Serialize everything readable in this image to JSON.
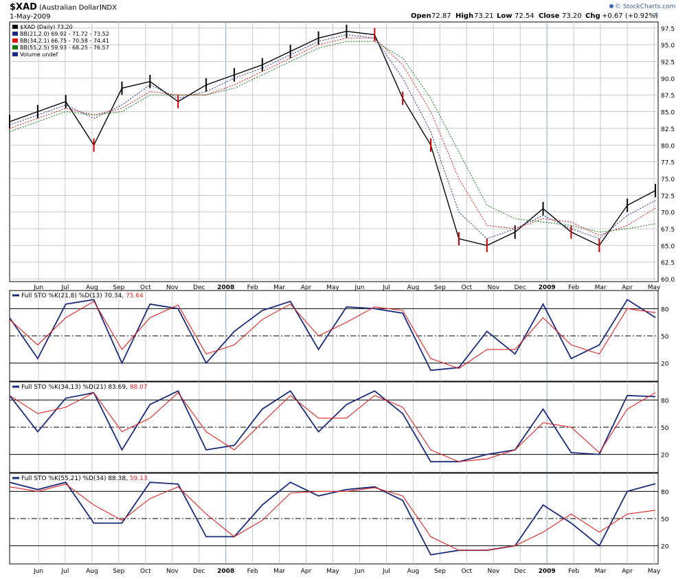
{
  "header": {
    "symbol": "$XAD",
    "name": "(Australian Dollar)",
    "exchange": "INDX",
    "date": "1-May-2009",
    "open_label": "Open",
    "open": "72.87",
    "high_label": "High",
    "high": "73.21",
    "low_label": "Low",
    "low": "72.54",
    "close_label": "Close",
    "close": "73.20",
    "chg_label": "Chg",
    "chg": "+0.67 (+0.92%)",
    "brand": "© StockCharts.com"
  },
  "colors": {
    "price_up": "#000000",
    "price_down": "#cc0000",
    "bb21": "#1a2a8c",
    "bb34": "#dd1111",
    "bb55": "#117711",
    "stoch_k": "#1a2a7a",
    "stoch_d": "#dd2222",
    "grid": "#c8c8c8"
  },
  "chart_data": [
    {
      "type": "line",
      "panel": "price",
      "legend": [
        {
          "text": "$XAD (Daily) 73.20",
          "color": "#000000"
        },
        {
          "text": "BB(21,2.0) 69.92 - 71.72 - 73.52",
          "color": "#1a2a8c"
        },
        {
          "text": "BB(34,2.1) 66.75 - 70.58 - 74.41",
          "color": "#dd1111"
        },
        {
          "text": "BB(55,2.5) 59.93 - 68.25 - 76.57",
          "color": "#117711"
        },
        {
          "text": "Volume undef",
          "color": "#1a2a8c"
        }
      ],
      "ylim": [
        59.6,
        98.4
      ],
      "yticks": [
        "60.0",
        "62.5",
        "65.0",
        "67.5",
        "70.0",
        "72.5",
        "75.0",
        "77.5",
        "80.0",
        "82.5",
        "85.0",
        "87.5",
        "90.0",
        "92.5",
        "95.0",
        "97.5"
      ],
      "x_labels": [
        "Jun",
        "Jul",
        "Aug",
        "Sep",
        "Oct",
        "Nov",
        "Dec",
        "2008",
        "Feb",
        "Mar",
        "Apr",
        "May",
        "Jun",
        "Jul",
        "Aug",
        "Sep",
        "Oct",
        "Nov",
        "Dec",
        "2009",
        "Feb",
        "Mar",
        "Apr",
        "May"
      ],
      "x": [
        0,
        1,
        2,
        3,
        4,
        5,
        6,
        7,
        8,
        9,
        10,
        11,
        12,
        13,
        14,
        15,
        16,
        17,
        18,
        19,
        20,
        21,
        22,
        23
      ],
      "series": [
        {
          "name": "$XAD (Daily) 73.20",
          "values": [
            83.5,
            85.0,
            86.5,
            80.0,
            88.5,
            89.5,
            86.5,
            89.0,
            90.5,
            92.0,
            94.0,
            96.0,
            97.0,
            96.5,
            87.0,
            80.0,
            66.0,
            65.0,
            67.0,
            70.5,
            67.0,
            65.0,
            71.0,
            73.2
          ]
        },
        {
          "name": "BB(21,2.0) 69.92 - 71.72 - 73.52",
          "values": [
            83.0,
            84.5,
            86.0,
            84.0,
            86.0,
            89.0,
            87.0,
            88.0,
            90.0,
            91.5,
            93.5,
            95.5,
            96.5,
            96.0,
            90.0,
            82.0,
            70.0,
            66.0,
            67.5,
            69.5,
            67.5,
            66.0,
            69.5,
            71.72
          ]
        },
        {
          "name": "BB(34,2.1) 66.75 - 70.58 - 74.41",
          "values": [
            82.5,
            84.0,
            85.5,
            84.5,
            85.5,
            88.0,
            87.5,
            87.5,
            89.0,
            91.0,
            93.0,
            95.0,
            96.0,
            96.0,
            92.0,
            85.0,
            75.0,
            68.0,
            67.5,
            69.0,
            68.5,
            66.5,
            68.0,
            70.58
          ]
        },
        {
          "name": "BB(55,2.5) 59.93 - 68.25 - 76.57",
          "values": [
            82.0,
            83.5,
            85.0,
            84.5,
            85.0,
            87.5,
            87.5,
            87.5,
            88.5,
            90.5,
            92.5,
            94.5,
            95.5,
            95.5,
            93.0,
            87.0,
            79.0,
            71.0,
            69.0,
            68.5,
            68.0,
            67.0,
            67.5,
            68.25
          ]
        }
      ]
    },
    {
      "type": "line",
      "panel": "sto1",
      "title": "Full STO %K(21,8) %D(13)",
      "k_value": "70.34",
      "d_value": "75.64",
      "ylim": [
        0,
        100
      ],
      "yticks": [
        "20",
        "50",
        "80"
      ],
      "x": [
        0,
        1,
        2,
        3,
        4,
        5,
        6,
        7,
        8,
        9,
        10,
        11,
        12,
        13,
        14,
        15,
        16,
        17,
        18,
        19,
        20,
        21,
        22,
        23
      ],
      "series": [
        {
          "name": "%K(21,8)",
          "values": [
            70,
            25,
            85,
            90,
            20,
            85,
            80,
            20,
            55,
            78,
            88,
            35,
            82,
            80,
            75,
            12,
            15,
            55,
            30,
            85,
            25,
            40,
            90,
            70.34
          ]
        },
        {
          "name": "%D(13)",
          "values": [
            68,
            40,
            70,
            88,
            35,
            70,
            84,
            30,
            40,
            68,
            85,
            50,
            65,
            82,
            78,
            25,
            14,
            35,
            35,
            70,
            40,
            30,
            80,
            75.64
          ]
        }
      ]
    },
    {
      "type": "line",
      "panel": "sto2",
      "title": "Full STO %K(34,13) %D(21)",
      "k_value": "83.69",
      "d_value": "88.07",
      "ylim": [
        0,
        100
      ],
      "yticks": [
        "20",
        "50",
        "80"
      ],
      "x": [
        0,
        1,
        2,
        3,
        4,
        5,
        6,
        7,
        8,
        9,
        10,
        11,
        12,
        13,
        14,
        15,
        16,
        17,
        18,
        19,
        20,
        21,
        22,
        23
      ],
      "series": [
        {
          "name": "%K(34,13)",
          "values": [
            85,
            45,
            82,
            88,
            25,
            75,
            90,
            25,
            30,
            70,
            90,
            45,
            75,
            90,
            65,
            12,
            12,
            20,
            25,
            70,
            22,
            20,
            85,
            83.69
          ]
        },
        {
          "name": "%D(21)",
          "values": [
            85,
            65,
            72,
            88,
            45,
            60,
            88,
            45,
            25,
            55,
            85,
            60,
            60,
            85,
            72,
            25,
            12,
            15,
            25,
            55,
            50,
            22,
            70,
            88.07
          ]
        }
      ]
    },
    {
      "type": "line",
      "panel": "sto3",
      "title": "Full STO %K(55,21) %D(34)",
      "k_value": "88.38",
      "d_value": "59.13",
      "ylim": [
        0,
        100
      ],
      "yticks": [
        "20",
        "50",
        "80"
      ],
      "x": [
        0,
        1,
        2,
        3,
        4,
        5,
        6,
        7,
        8,
        9,
        10,
        11,
        12,
        13,
        14,
        15,
        16,
        17,
        18,
        19,
        20,
        21,
        22,
        23
      ],
      "series": [
        {
          "name": "%K(55,21)",
          "values": [
            90,
            82,
            90,
            45,
            45,
            90,
            88,
            30,
            30,
            65,
            90,
            75,
            82,
            85,
            70,
            10,
            15,
            15,
            20,
            65,
            45,
            20,
            80,
            88.38
          ]
        },
        {
          "name": "%D(34)",
          "values": [
            85,
            80,
            88,
            65,
            48,
            72,
            85,
            55,
            30,
            48,
            78,
            80,
            80,
            84,
            75,
            30,
            15,
            15,
            20,
            35,
            55,
            35,
            55,
            59.13
          ]
        }
      ]
    }
  ]
}
